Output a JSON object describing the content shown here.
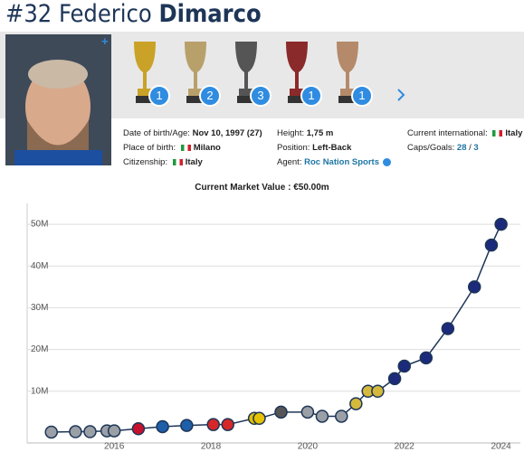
{
  "header": {
    "number": "#32",
    "first_name": "Federico",
    "last_name": "Dimarco"
  },
  "trophies": [
    "1",
    "2",
    "3",
    "1",
    "1"
  ],
  "info": [
    {
      "label": "Date of birth/Age:",
      "value": "Nov 10, 1997 (27)"
    },
    {
      "label": "Place of birth:",
      "value": "Milano"
    },
    {
      "label": "Citizenship:",
      "value": "Italy"
    },
    {
      "label": "Height:",
      "value": "1,75 m"
    },
    {
      "label": "Position:",
      "value": "Left-Back"
    },
    {
      "label": "Agent:",
      "value": "Roc Nation Sports"
    },
    {
      "label": "Current international:",
      "value": "Italy"
    },
    {
      "label": "Caps/Goals:",
      "value": [
        "28",
        "/",
        "3"
      ]
    }
  ],
  "chart_data": {
    "type": "line",
    "title": "Current Market Value : €50.00m",
    "x": [
      2014.7,
      2015.2,
      2015.5,
      2015.85,
      2016.0,
      2016.5,
      2017.0,
      2017.5,
      2018.05,
      2018.35,
      2018.9,
      2019.0,
      2019.45,
      2020.0,
      2020.3,
      2020.7,
      2021.0,
      2021.25,
      2021.45,
      2021.8,
      2022.0,
      2022.45,
      2022.9,
      2023.45,
      2023.8,
      2024.0
    ],
    "series": [
      {
        "color": "#1d3557",
        "values": [
          0.2,
          0.3,
          0.3,
          0.5,
          0.5,
          1,
          1.5,
          1.8,
          2,
          2,
          3.5,
          3.5,
          5,
          5,
          4,
          4,
          7,
          10,
          10,
          13,
          16,
          18,
          25,
          35,
          45,
          50
        ],
        "point_colors": [
          "#9aa0a6",
          "#9aa0a6",
          "#9aa0a6",
          "#9aa0a6",
          "#9aa0a6",
          "#c8102e",
          "#1f5fa8",
          "#1f5fa8",
          "#d62828",
          "#d62828",
          "#e4c200",
          "#e4c200",
          "#555555",
          "#9aa0a6",
          "#9aa0a6",
          "#9aa0a6",
          "#d4b93c",
          "#d4b93c",
          "#d4b93c",
          "#1b2a7a",
          "#1b2a7a",
          "#1b2a7a",
          "#1b2a7a",
          "#1b2a7a",
          "#1b2a7a",
          "#1b2a7a"
        ]
      }
    ],
    "xlim": [
      2014.2,
      2024.4
    ],
    "xticks": [
      2016,
      2018,
      2020,
      2022,
      2024
    ],
    "ylim": [
      -2.4,
      55
    ],
    "yticks": [
      {
        "value": 10,
        "label": "10M"
      },
      {
        "value": 20,
        "label": "20M"
      },
      {
        "value": 30,
        "label": "30M"
      },
      {
        "value": 40,
        "label": "40M"
      },
      {
        "value": 50,
        "label": "50M"
      }
    ],
    "grid": true
  }
}
